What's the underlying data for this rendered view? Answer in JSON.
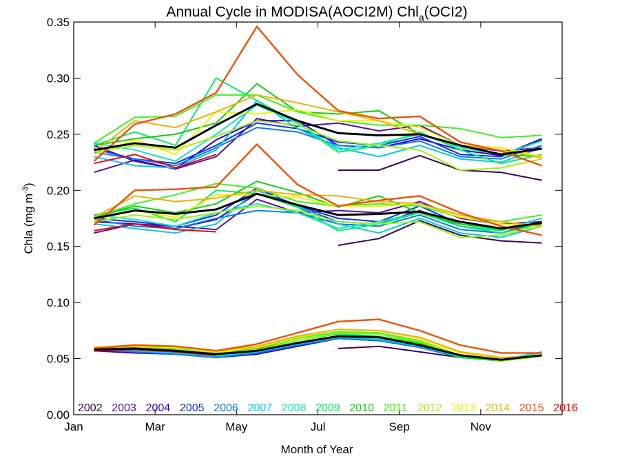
{
  "chart_data": {
    "type": "line",
    "title_main": "Annual Cycle in MODISA(AOCI2M) Chl",
    "title_sub": "a",
    "title_tail": "(OCI2)",
    "xlabel": "Month of Year",
    "ylabel_main": "Chla (mg m",
    "ylabel_sup": "-3",
    "ylabel_tail": ")",
    "xlim": [
      1,
      13
    ],
    "ylim": [
      0,
      0.35
    ],
    "grid": false,
    "legend_position": "bottom",
    "x_ticks": [
      {
        "value": 1,
        "label": "Jan"
      },
      {
        "value": 3,
        "label": "Mar"
      },
      {
        "value": 5,
        "label": "May"
      },
      {
        "value": 7,
        "label": "Jul"
      },
      {
        "value": 9,
        "label": "Sep"
      },
      {
        "value": 11,
        "label": "Nov"
      }
    ],
    "y_ticks": [
      {
        "value": 0,
        "label": "0.00"
      },
      {
        "value": 0.05,
        "label": "0.05"
      },
      {
        "value": 0.1,
        "label": "0.10"
      },
      {
        "value": 0.15,
        "label": "0.15"
      },
      {
        "value": 0.2,
        "label": "0.20"
      },
      {
        "value": 0.25,
        "label": "0.25"
      },
      {
        "value": 0.3,
        "label": "0.30"
      },
      {
        "value": 0.35,
        "label": "0.35"
      }
    ],
    "x": [
      1.5,
      2.5,
      3.5,
      4.5,
      5.5,
      6.5,
      7.5,
      8.5,
      9.5,
      10.5,
      11.5,
      12.5
    ],
    "series": [
      {
        "name": "2002",
        "color": "#3a005a",
        "width": 2,
        "high": [
          null,
          null,
          null,
          null,
          null,
          null,
          0.218,
          0.218,
          0.231,
          0.218,
          0.216,
          0.209
        ],
        "mid": [
          null,
          null,
          null,
          null,
          null,
          null,
          0.151,
          0.157,
          0.173,
          0.16,
          0.155,
          0.153
        ],
        "low": [
          null,
          null,
          null,
          null,
          null,
          null,
          0.059,
          0.061,
          0.056,
          0.051,
          0.049,
          0.052
        ]
      },
      {
        "name": "2003",
        "color": "#5a0aa0",
        "width": 2,
        "high": [
          0.216,
          0.227,
          0.219,
          0.23,
          0.264,
          0.257,
          0.26,
          0.253,
          0.258,
          0.24,
          0.235,
          0.238
        ],
        "mid": [
          0.162,
          0.17,
          0.168,
          0.165,
          0.192,
          0.18,
          0.182,
          0.18,
          0.19,
          0.175,
          0.17,
          0.172
        ],
        "low": [
          0.057,
          0.056,
          0.054,
          0.051,
          0.054,
          0.061,
          0.068,
          0.066,
          0.06,
          0.051,
          0.048,
          0.053
        ]
      },
      {
        "name": "2004",
        "color": "#2a00d0",
        "width": 2,
        "high": [
          0.24,
          0.226,
          0.219,
          0.245,
          0.262,
          0.262,
          0.24,
          0.238,
          0.246,
          0.236,
          0.231,
          0.246
        ],
        "mid": [
          0.172,
          0.17,
          0.166,
          0.174,
          0.197,
          0.185,
          0.172,
          0.17,
          0.182,
          0.168,
          0.162,
          0.172
        ],
        "low": [
          0.057,
          0.055,
          0.054,
          0.051,
          0.054,
          0.061,
          0.068,
          0.066,
          0.061,
          0.051,
          0.048,
          0.053
        ]
      },
      {
        "name": "2005",
        "color": "#1030f0",
        "width": 2,
        "high": [
          0.237,
          0.228,
          0.224,
          0.24,
          0.26,
          0.255,
          0.243,
          0.24,
          0.248,
          0.232,
          0.23,
          0.245
        ],
        "mid": [
          0.175,
          0.172,
          0.168,
          0.178,
          0.202,
          0.186,
          0.175,
          0.172,
          0.186,
          0.17,
          0.165,
          0.175
        ],
        "low": [
          0.058,
          0.056,
          0.054,
          0.052,
          0.055,
          0.062,
          0.068,
          0.067,
          0.061,
          0.052,
          0.049,
          0.053
        ]
      },
      {
        "name": "2006",
        "color": "#0a78f0",
        "width": 2,
        "high": [
          0.234,
          0.228,
          0.222,
          0.238,
          0.256,
          0.252,
          0.24,
          0.238,
          0.244,
          0.23,
          0.228,
          0.24
        ],
        "mid": [
          0.174,
          0.168,
          0.166,
          0.175,
          0.182,
          0.18,
          0.17,
          0.168,
          0.178,
          0.165,
          0.162,
          0.17
        ],
        "low": [
          0.058,
          0.056,
          0.054,
          0.051,
          0.055,
          0.062,
          0.068,
          0.066,
          0.06,
          0.051,
          0.048,
          0.053
        ]
      },
      {
        "name": "2007",
        "color": "#00c8f0",
        "width": 2,
        "high": [
          0.23,
          0.222,
          0.22,
          0.236,
          0.28,
          0.255,
          0.238,
          0.23,
          0.24,
          0.228,
          0.225,
          0.238
        ],
        "mid": [
          0.17,
          0.166,
          0.162,
          0.17,
          0.2,
          0.186,
          0.17,
          0.162,
          0.175,
          0.162,
          0.158,
          0.168
        ],
        "low": [
          0.058,
          0.057,
          0.055,
          0.052,
          0.056,
          0.063,
          0.069,
          0.067,
          0.061,
          0.052,
          0.049,
          0.056
        ]
      },
      {
        "name": "2008",
        "color": "#10e8c0",
        "width": 2,
        "high": [
          0.242,
          0.236,
          0.226,
          0.25,
          0.276,
          0.26,
          0.236,
          0.242,
          0.25,
          0.238,
          0.232,
          0.244
        ],
        "mid": [
          0.178,
          0.174,
          0.168,
          0.18,
          0.188,
          0.18,
          0.166,
          0.172,
          0.18,
          0.168,
          0.164,
          0.175
        ],
        "low": [
          0.059,
          0.058,
          0.056,
          0.053,
          0.057,
          0.064,
          0.07,
          0.068,
          0.062,
          0.053,
          0.05,
          0.055
        ]
      },
      {
        "name": "2009",
        "color": "#00f060",
        "width": 2,
        "high": [
          0.24,
          0.252,
          0.24,
          0.3,
          0.28,
          0.26,
          0.234,
          0.24,
          0.252,
          0.236,
          0.224,
          0.232
        ],
        "mid": [
          0.178,
          0.184,
          0.172,
          0.2,
          0.197,
          0.185,
          0.164,
          0.17,
          0.18,
          0.168,
          0.162,
          0.17
        ],
        "low": [
          0.06,
          0.059,
          0.057,
          0.054,
          0.058,
          0.066,
          0.072,
          0.07,
          0.063,
          0.051,
          0.048,
          0.053
        ]
      },
      {
        "name": "2010",
        "color": "#10d010",
        "width": 2,
        "high": [
          0.24,
          0.246,
          0.25,
          0.26,
          0.295,
          0.27,
          0.268,
          0.271,
          0.25,
          0.24,
          0.232,
          0.23
        ],
        "mid": [
          0.176,
          0.186,
          0.18,
          0.188,
          0.208,
          0.198,
          0.185,
          0.195,
          0.18,
          0.17,
          0.165,
          0.17
        ],
        "low": [
          0.059,
          0.06,
          0.058,
          0.055,
          0.059,
          0.066,
          0.073,
          0.072,
          0.064,
          0.052,
          0.048,
          0.052
        ]
      },
      {
        "name": "2011",
        "color": "#40f020",
        "width": 2,
        "high": [
          0.242,
          0.265,
          0.266,
          0.285,
          0.285,
          0.27,
          0.262,
          0.258,
          0.258,
          0.255,
          0.247,
          0.249
        ],
        "mid": [
          0.176,
          0.188,
          0.196,
          0.206,
          0.202,
          0.19,
          0.186,
          0.188,
          0.186,
          0.176,
          0.172,
          0.178
        ],
        "low": [
          0.06,
          0.061,
          0.059,
          0.056,
          0.06,
          0.068,
          0.074,
          0.073,
          0.066,
          0.053,
          0.049,
          0.052
        ]
      },
      {
        "name": "2012",
        "color": "#a0f010",
        "width": 2,
        "high": [
          0.234,
          0.24,
          0.236,
          0.248,
          0.262,
          0.258,
          0.244,
          0.24,
          0.236,
          0.218,
          0.22,
          0.228
        ],
        "mid": [
          0.172,
          0.178,
          0.174,
          0.18,
          0.186,
          0.182,
          0.172,
          0.17,
          0.172,
          0.158,
          0.16,
          0.168
        ],
        "low": [
          0.059,
          0.06,
          0.058,
          0.055,
          0.058,
          0.066,
          0.073,
          0.072,
          0.065,
          0.053,
          0.048,
          0.052
        ]
      },
      {
        "name": "2013",
        "color": "#f0f000",
        "width": 2,
        "high": [
          0.232,
          0.245,
          0.232,
          0.27,
          0.268,
          0.272,
          0.262,
          0.262,
          0.256,
          0.24,
          0.238,
          0.23
        ],
        "mid": [
          0.174,
          0.182,
          0.176,
          0.196,
          0.196,
          0.194,
          0.186,
          0.186,
          0.188,
          0.176,
          0.17,
          0.168
        ],
        "low": [
          0.06,
          0.061,
          0.06,
          0.056,
          0.06,
          0.069,
          0.076,
          0.075,
          0.068,
          0.055,
          0.05,
          0.052
        ]
      },
      {
        "name": "2014",
        "color": "#f0b000",
        "width": 2,
        "high": [
          0.234,
          0.262,
          0.256,
          0.27,
          0.285,
          0.278,
          0.27,
          0.262,
          0.25,
          0.24,
          0.236,
          0.229
        ],
        "mid": [
          0.176,
          0.195,
          0.19,
          0.193,
          0.2,
          0.196,
          0.195,
          0.19,
          0.188,
          0.178,
          0.172,
          0.168
        ],
        "low": [
          0.06,
          0.062,
          0.061,
          0.057,
          0.061,
          0.07,
          0.076,
          0.075,
          0.069,
          0.056,
          0.051,
          0.052
        ]
      },
      {
        "name": "2015",
        "color": "#f05000",
        "width": 2.4,
        "high": [
          0.226,
          0.259,
          0.268,
          0.287,
          0.346,
          0.303,
          0.271,
          0.264,
          0.266,
          0.243,
          0.235,
          0.222
        ],
        "mid": [
          0.169,
          0.2,
          0.201,
          0.203,
          0.241,
          0.205,
          0.186,
          0.191,
          0.195,
          0.18,
          0.168,
          0.16
        ],
        "low": [
          0.059,
          0.062,
          0.061,
          0.057,
          0.063,
          0.073,
          0.083,
          0.085,
          0.075,
          0.062,
          0.055,
          0.055
        ]
      },
      {
        "name": "2016",
        "color": "#f00000",
        "width": 2,
        "high": [
          0.224,
          0.232,
          0.22,
          0.232,
          null,
          null,
          null,
          null,
          null,
          null,
          null,
          null
        ],
        "mid": [
          0.164,
          0.17,
          0.165,
          0.163,
          null,
          null,
          null,
          null,
          null,
          null,
          null,
          null
        ],
        "low": [
          0.057,
          0.058,
          0.056,
          0.053,
          null,
          null,
          null,
          null,
          null,
          null,
          null,
          null
        ]
      }
    ],
    "mean": {
      "color": "#000000",
      "high": [
        0.236,
        0.242,
        0.238,
        0.258,
        0.277,
        0.262,
        0.251,
        0.249,
        0.25,
        0.24,
        0.232,
        0.237
      ],
      "mid": [
        0.175,
        0.182,
        0.179,
        0.183,
        0.197,
        0.187,
        0.178,
        0.179,
        0.181,
        0.172,
        0.166,
        0.171
      ],
      "low": [
        0.058,
        0.059,
        0.057,
        0.054,
        0.057,
        0.064,
        0.07,
        0.069,
        0.062,
        0.053,
        0.049,
        0.053
      ]
    }
  }
}
